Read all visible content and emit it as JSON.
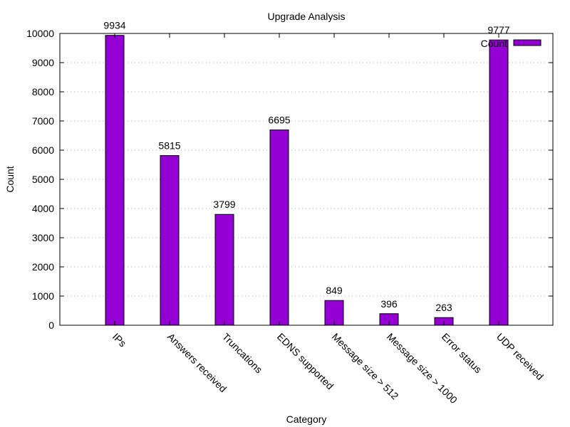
{
  "chart_data": {
    "type": "bar",
    "title": "Upgrade Analysis",
    "xlabel": "Category",
    "ylabel": "Count",
    "ylim": [
      0,
      10000
    ],
    "yticks": [
      0,
      1000,
      2000,
      3000,
      4000,
      5000,
      6000,
      7000,
      8000,
      9000,
      10000
    ],
    "grid": true,
    "legend_position": "top-right",
    "categories": [
      "IPs",
      "Answers received",
      "Truncations",
      "EDNS supported",
      "Message size > 512",
      "Message size > 1000",
      "Error status",
      "UDP received"
    ],
    "series": [
      {
        "name": "Count",
        "color": "#9400d3",
        "values": [
          9934,
          5815,
          3799,
          6695,
          849,
          396,
          263,
          9777
        ]
      }
    ],
    "data_labels": [
      "9934",
      "5815",
      "3799",
      "6695",
      "849",
      "396",
      "263",
      "9777"
    ]
  }
}
